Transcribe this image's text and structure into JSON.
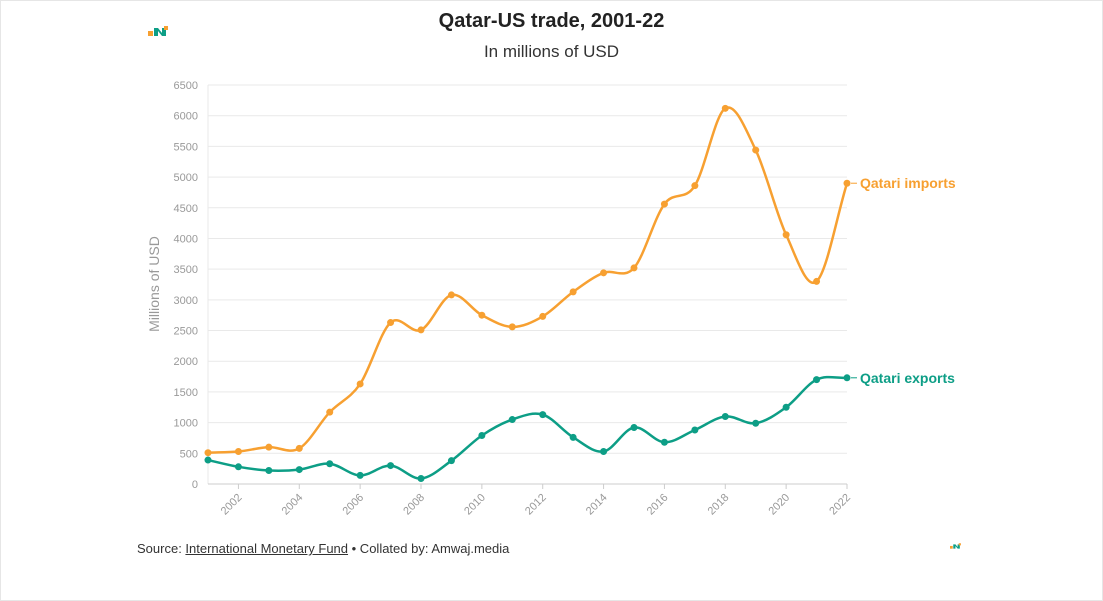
{
  "title": "Qatar-US trade, 2001-22",
  "subtitle": "In millions of USD",
  "footer": {
    "source_prefix": "Source: ",
    "source_link": "International Monetary Fund",
    "collated": " • Collated by: Amwaj.media"
  },
  "colors": {
    "imports": "#f7a031",
    "exports": "#0d9e86",
    "grid": "#e9e9e9",
    "axis_text": "#999999"
  },
  "chart_data": {
    "type": "line",
    "title": "Qatar-US trade, 2001-22",
    "subtitle": "In millions of USD",
    "ylabel": "Millions of USD",
    "xlabel": "",
    "ylim": [
      0,
      6500
    ],
    "yticks": [
      0,
      500,
      1000,
      1500,
      2000,
      2500,
      3000,
      3500,
      4000,
      4500,
      5000,
      5500,
      6000,
      6500
    ],
    "xticks": [
      "2002",
      "2004",
      "2006",
      "2008",
      "2010",
      "2012",
      "2014",
      "2016",
      "2018",
      "2020",
      "2022"
    ],
    "x": [
      2001,
      2002,
      2003,
      2004,
      2005,
      2006,
      2007,
      2008,
      2009,
      2010,
      2011,
      2012,
      2013,
      2014,
      2015,
      2016,
      2017,
      2018,
      2019,
      2020,
      2021,
      2022
    ],
    "grid": true,
    "legend": "inline labels at line ends",
    "series": [
      {
        "name": "Qatari imports",
        "color": "#f7a031",
        "values": [
          510,
          530,
          600,
          580,
          1170,
          1630,
          2630,
          2510,
          3080,
          2750,
          2560,
          2730,
          3130,
          3440,
          3520,
          4560,
          4860,
          6120,
          5440,
          4060,
          3300,
          4900
        ]
      },
      {
        "name": "Qatari exports",
        "color": "#0d9e86",
        "values": [
          390,
          280,
          220,
          235,
          330,
          140,
          300,
          90,
          380,
          790,
          1050,
          1130,
          760,
          530,
          920,
          680,
          880,
          1100,
          990,
          1250,
          1700,
          1730
        ]
      }
    ]
  }
}
